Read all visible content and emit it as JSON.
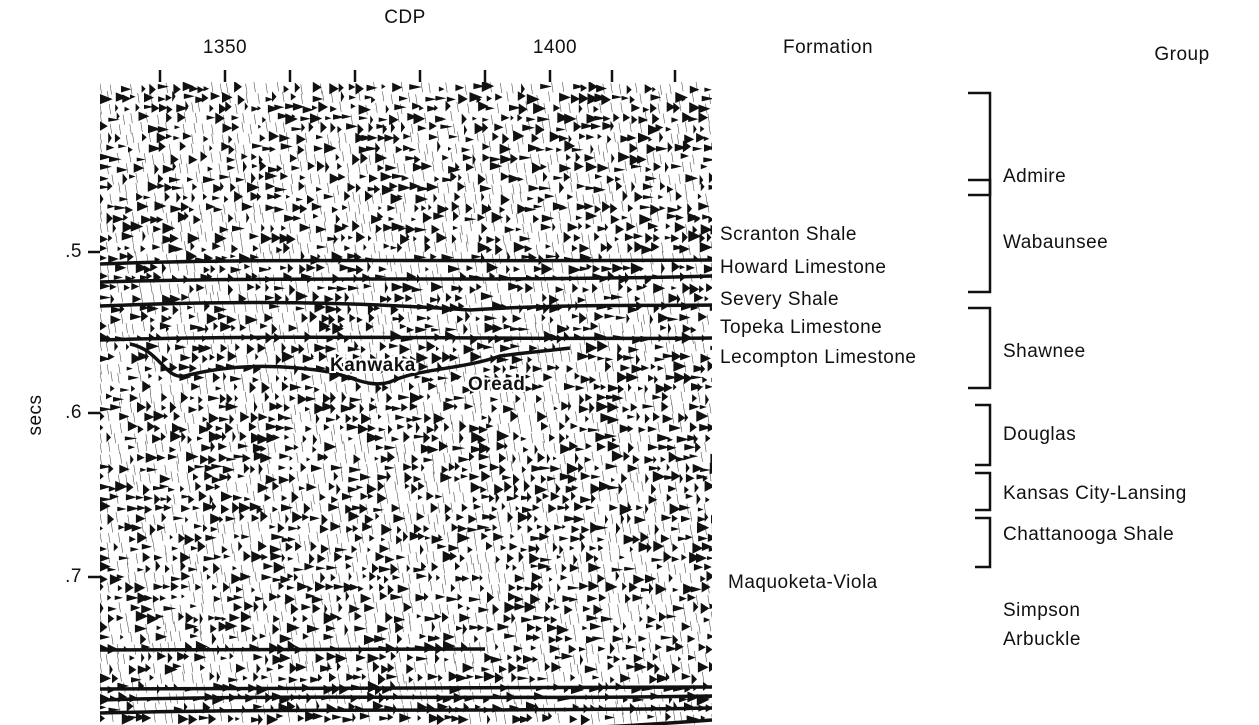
{
  "axis": {
    "x_title": "CDP",
    "x_ticks": [
      "1350",
      "1400"
    ],
    "y_title": "secs",
    "y_ticks": [
      ".5",
      ".6",
      ".7"
    ]
  },
  "headers": {
    "formation": "Formation",
    "group": "Group"
  },
  "section_labels": [
    "Kanwaka",
    "Oread"
  ],
  "formations": [
    "Scranton Shale",
    "Howard Limestone",
    "Severy Shale",
    "Topeka Limestone",
    "Lecompton Limestone",
    "Maquoketa-Viola"
  ],
  "groups": [
    "Admire",
    "Wabaunsee",
    "Shawnee",
    "Douglas",
    "Kansas City-Lansing",
    "Chattanooga Shale",
    "Simpson",
    "Arbuckle"
  ]
}
